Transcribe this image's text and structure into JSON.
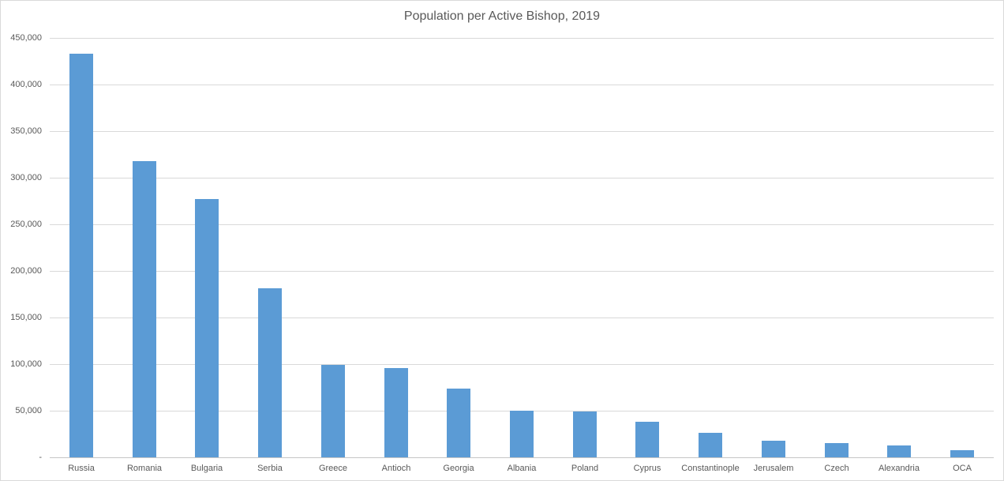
{
  "chart_data": {
    "type": "bar",
    "title": "Population per Active Bishop, 2019",
    "categories": [
      "Russia",
      "Romania",
      "Bulgaria",
      "Serbia",
      "Greece",
      "Antioch",
      "Georgia",
      "Albania",
      "Poland",
      "Cyprus",
      "Constantinople",
      "Jerusalem",
      "Czech",
      "Alexandria",
      "OCA"
    ],
    "values": [
      433000,
      318000,
      277000,
      181000,
      99000,
      96000,
      74000,
      50000,
      49500,
      38000,
      26500,
      17500,
      15500,
      13000,
      7600
    ],
    "xlabel": "",
    "ylabel": "",
    "ylim": [
      0,
      450000
    ],
    "ytick_interval": 50000,
    "ytick_labels": [
      "-",
      "50,000",
      "100,000",
      "150,000",
      "200,000",
      "250,000",
      "300,000",
      "350,000",
      "400,000",
      "450,000"
    ],
    "grid": true,
    "legend": false,
    "bar_color": "#5B9BD5",
    "gridline_color": "#D9D9D9",
    "axis_line_color": "#C6C6C6",
    "text_color": "#595959",
    "background": "#FFFFFF"
  }
}
